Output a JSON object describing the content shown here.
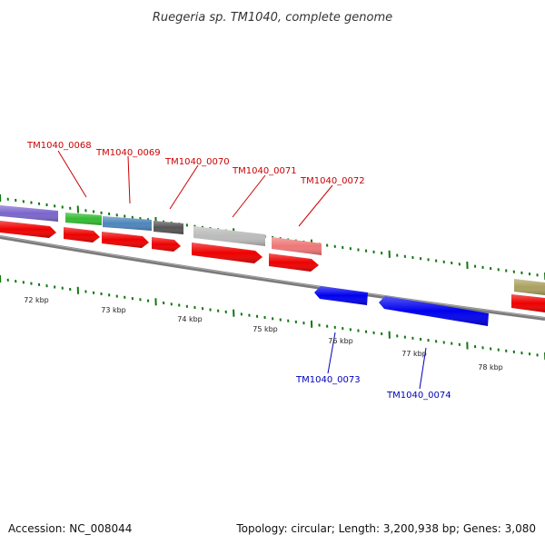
{
  "title": "Ruegeria sp. TM1040, complete genome",
  "footer": {
    "accession": "Accession: NC_008044",
    "summary": "Topology: circular; Length: 3,200,938 bp; Genes: 3,080"
  },
  "colors": {
    "backbone": "#777777",
    "cds": "#ff0000",
    "forward_label": "#cc0000",
    "reverse_label": "#0000bb",
    "reverse_gene": "#0000ee",
    "ticks": "#117711"
  },
  "scale": {
    "labels": [
      "72 kbp",
      "73 kbp",
      "74 kbp",
      "75 kbp",
      "76 kbp",
      "77 kbp",
      "78 kbp"
    ]
  },
  "forward_labels": [
    "TM1040_0068",
    "TM1040_0069",
    "TM1040_0070",
    "TM1040_0071",
    "TM1040_0072"
  ],
  "reverse_labels": [
    "TM1040_0073",
    "TM1040_0074"
  ]
}
